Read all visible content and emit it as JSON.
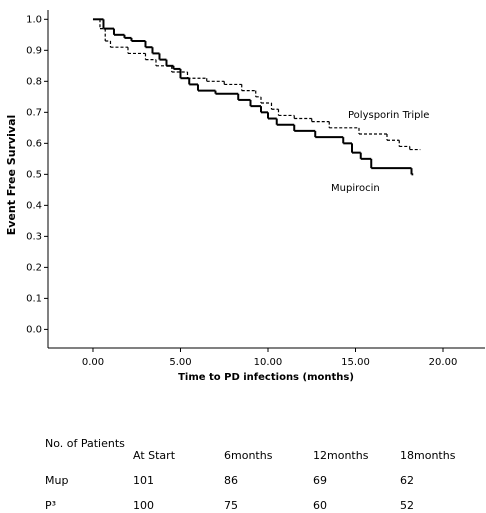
{
  "chart_data": {
    "type": "step",
    "xlabel": "Time to PD infections (months)",
    "ylabel": "Event Free Survival",
    "xlim": [
      -2.57,
      22.4
    ],
    "ylim": [
      -0.06,
      1.03
    ],
    "xticks": [
      {
        "value": 0,
        "label": "0.00"
      },
      {
        "value": 5,
        "label": "5.00"
      },
      {
        "value": 10,
        "label": "10.00"
      },
      {
        "value": 15,
        "label": "15.00"
      },
      {
        "value": 20,
        "label": "20.00"
      }
    ],
    "yticks": [
      {
        "value": 0,
        "label": "0.0"
      },
      0.1,
      0.2,
      0.3,
      0.4,
      0.5,
      0.6,
      0.7,
      0.8,
      0.9,
      {
        "value": 1,
        "label": "1.0"
      }
    ],
    "series": [
      {
        "name": "Polysporin Triple",
        "color": "#000000",
        "dash": true,
        "x": [
          0,
          0.4,
          0.7,
          1.0,
          2.0,
          3.0,
          3.6,
          4.5,
          5.4,
          6.5,
          7.5,
          8.5,
          9.3,
          9.6,
          10.2,
          10.6,
          11.5,
          12.5,
          13.5,
          15.2,
          16.8,
          17.5,
          18.1,
          18.7
        ],
        "values": [
          1.0,
          0.97,
          0.93,
          0.91,
          0.89,
          0.87,
          0.85,
          0.83,
          0.81,
          0.8,
          0.79,
          0.77,
          0.75,
          0.73,
          0.71,
          0.69,
          0.68,
          0.67,
          0.65,
          0.63,
          0.61,
          0.59,
          0.58,
          0.58
        ]
      },
      {
        "name": "Mupirocin",
        "color": "#000000",
        "dash": false,
        "x": [
          0,
          0.6,
          1.2,
          1.8,
          2.2,
          3.0,
          3.4,
          3.8,
          4.2,
          4.6,
          5.0,
          5.5,
          6.0,
          7.0,
          8.3,
          9.0,
          9.6,
          10.0,
          10.5,
          11.5,
          12.7,
          14.3,
          14.8,
          15.3,
          15.9,
          18.2,
          18.3
        ],
        "values": [
          1.0,
          0.97,
          0.95,
          0.94,
          0.93,
          0.91,
          0.89,
          0.87,
          0.85,
          0.84,
          0.81,
          0.79,
          0.77,
          0.76,
          0.74,
          0.72,
          0.7,
          0.68,
          0.66,
          0.64,
          0.62,
          0.6,
          0.57,
          0.55,
          0.52,
          0.5,
          0.5
        ]
      }
    ]
  },
  "table": {
    "title": "No. of Patients",
    "columns": [
      "At Start",
      "6months",
      "12months",
      "18months"
    ],
    "rows": [
      [
        "Mup",
        "101",
        "86",
        "69",
        "62"
      ],
      [
        "P³",
        "100",
        "75",
        "60",
        "52"
      ]
    ]
  }
}
